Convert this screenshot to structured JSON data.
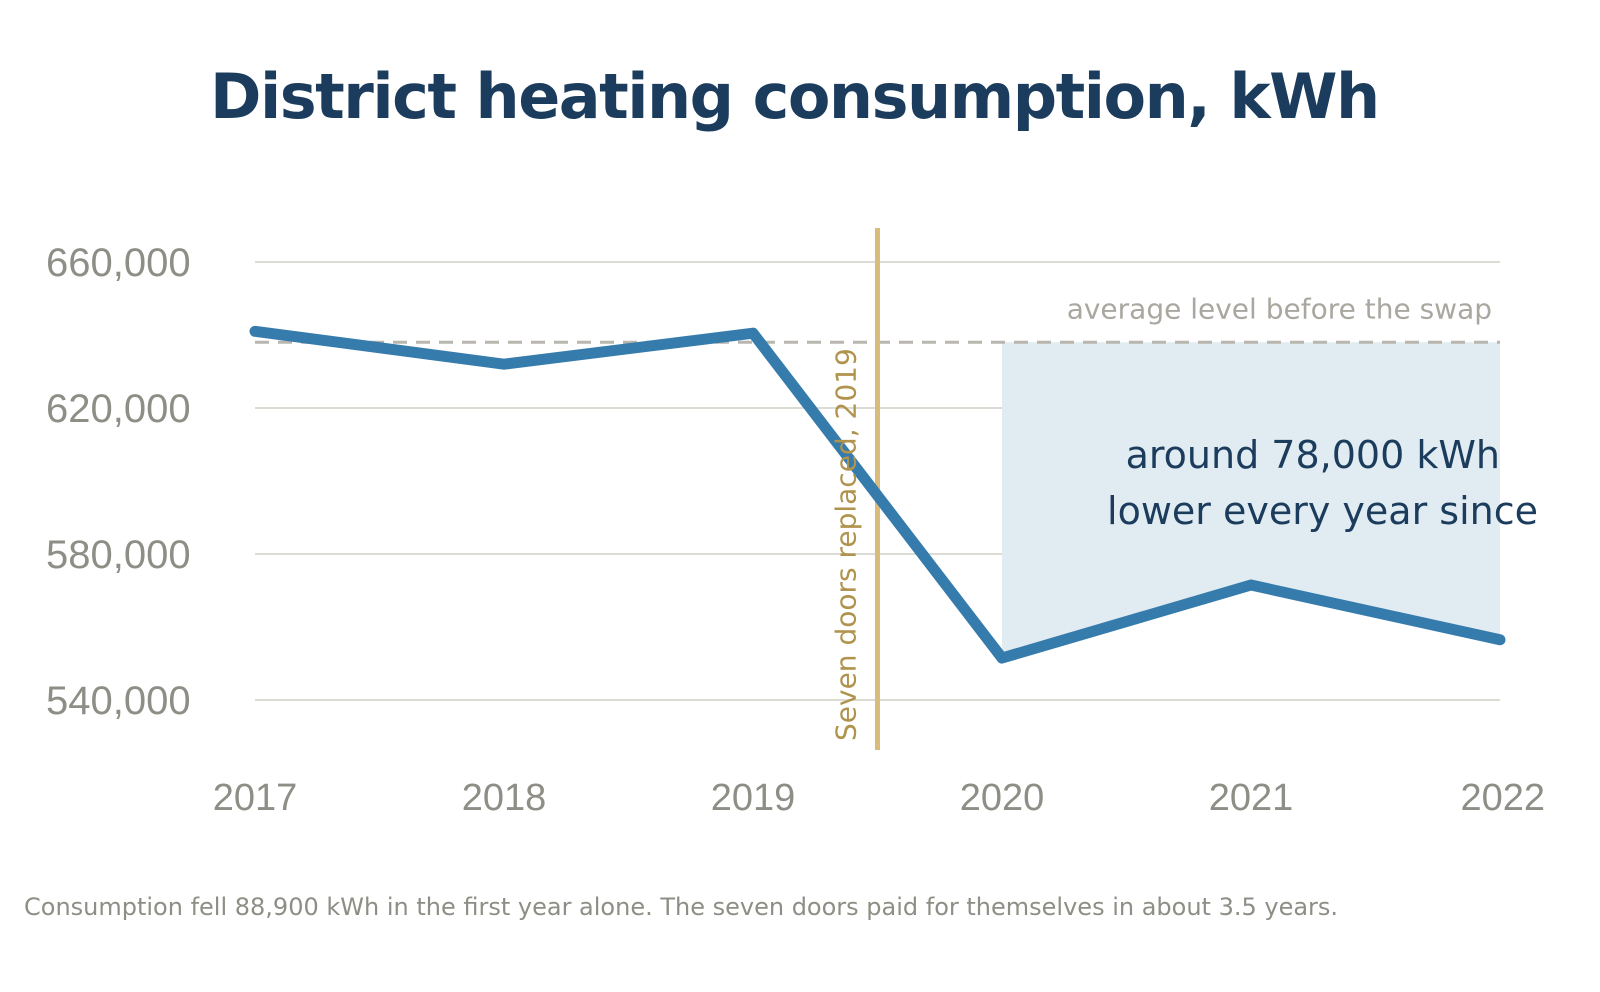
{
  "title": "District heating consumption, kWh",
  "footnote": "Consumption fell 88,900 kWh in the first year alone. The seven doors paid for themselves in about 3.5 years.",
  "chart_data": {
    "type": "line",
    "title": "District heating consumption, kWh",
    "xlabel": "",
    "ylabel": "",
    "x": [
      2017,
      2018,
      2019,
      2020,
      2021,
      2022
    ],
    "x_tick_labels": [
      "2017",
      "2018",
      "2019",
      "2020",
      "2021",
      "2022"
    ],
    "series": [
      {
        "values": [
          641000,
          632000,
          640500,
          551500,
          571500,
          556500
        ]
      }
    ],
    "ylim": [
      530000,
      670000
    ],
    "y_ticks": [
      660000,
      620000,
      580000,
      540000
    ],
    "y_tick_labels": [
      "660,000",
      "620,000",
      "580,000",
      "540,000"
    ],
    "grid": true,
    "legend": "none",
    "reference_line": {
      "value": 638000,
      "label": "average level before the swap"
    },
    "event": {
      "x": 2019.5,
      "label": "Seven doors replaced, 2019"
    },
    "shaded_region": {
      "x_start": 2020,
      "x_end": 2022,
      "top": 638000,
      "label_lines": [
        "around 78,000 kWh",
        "lower every year since"
      ]
    },
    "colors": {
      "series": "#357bac",
      "band": "#e1ebf2",
      "event": "#d9bc7c",
      "reference": "#b8b6ae",
      "title": "#1b3c5c"
    }
  }
}
